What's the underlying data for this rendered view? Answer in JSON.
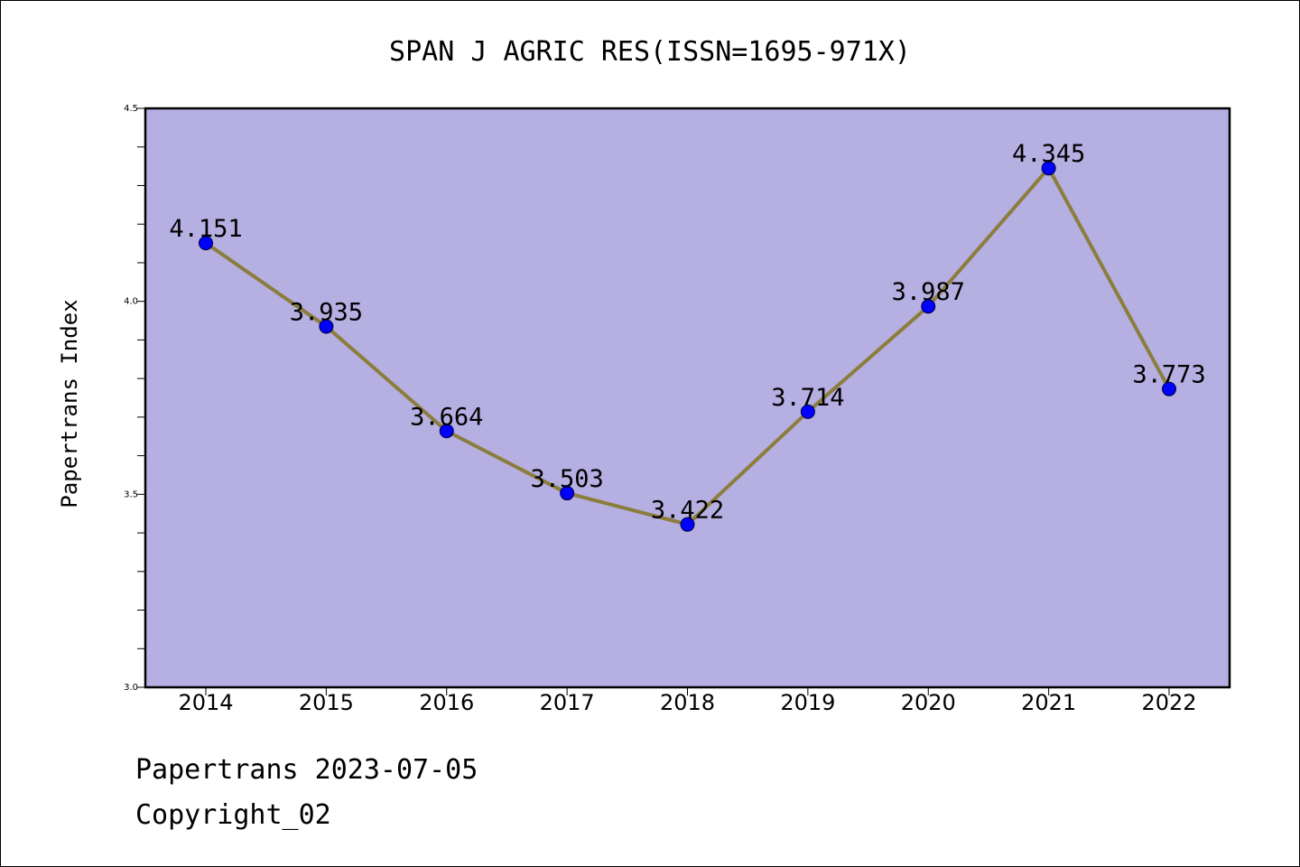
{
  "chart_data": {
    "type": "line",
    "title": "SPAN J AGRIC RES(ISSN=1695-971X)",
    "xlabel": "",
    "ylabel": "Papertrans Index",
    "categories": [
      "2014",
      "2015",
      "2016",
      "2017",
      "2018",
      "2019",
      "2020",
      "2021",
      "2022"
    ],
    "series": [
      {
        "values": [
          4.151,
          3.935,
          3.664,
          3.503,
          3.422,
          3.714,
          3.987,
          4.345,
          3.773
        ],
        "labels": [
          "4.151",
          "3.935",
          "3.664",
          "3.503",
          "3.422",
          "3.714",
          "3.987",
          "4.345",
          "3.773"
        ]
      }
    ],
    "ylim": [
      3.0,
      4.5
    ],
    "yticks": [
      3.0,
      3.5,
      4.0,
      4.5
    ],
    "ytick_labels": [
      "3.0",
      "3.5",
      "4.0",
      "4.5"
    ],
    "grid": false,
    "legend": "none",
    "colors": {
      "plot_background": "#b5afe2",
      "line": "#8b7d3c",
      "marker": "#0000ff"
    }
  },
  "footer": {
    "date_line": "Papertrans 2023-07-05",
    "copyright": "Copyright_02"
  }
}
